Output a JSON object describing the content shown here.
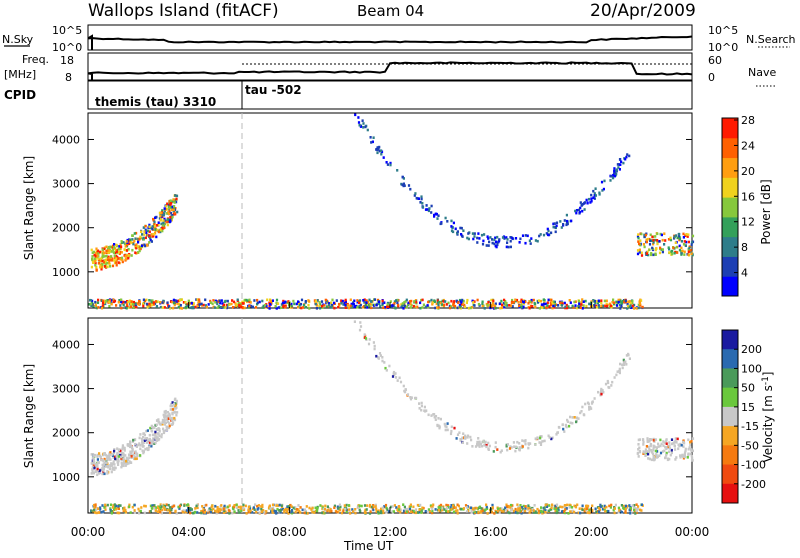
{
  "header": {
    "station": "Wallops Island (fitACF)",
    "beam": "Beam 04",
    "date": "20/Apr/2009"
  },
  "top_panels": {
    "nsky_label": "N.Sky",
    "nsky_top_tick": "10^5",
    "nsky_bottom_tick": "10^0",
    "nsearch_label": "N.Search",
    "nsearch_top_tick": "10^5",
    "nsearch_bottom_tick": "10^0",
    "freq_label_1": "Freq.",
    "freq_label_2": "[MHz]",
    "freq_top_tick": "18",
    "freq_bottom_tick": "8",
    "nave_label": "Nave",
    "nave_top_tick": "60",
    "nave_bottom_tick": "0",
    "cpid_label": "CPID",
    "cpid_segment_1": "themis (tau) 3310",
    "cpid_segment_2": "tau -502"
  },
  "chart_data": [
    {
      "type": "heatmap",
      "title": "Power",
      "xlabel": "Time UT",
      "ylabel": "Slant Range [km]",
      "x_ticks": [
        "00:00",
        "04:00",
        "08:00",
        "12:00",
        "16:00",
        "20:00",
        "00:00"
      ],
      "xlim_hours": [
        0,
        24
      ],
      "ylim": [
        180,
        4600
      ],
      "y_ticks": [
        1000,
        2000,
        3000,
        4000
      ],
      "colorbar": {
        "label": "Power [dB]",
        "ticks": [
          "4",
          "8",
          "12",
          "16",
          "20",
          "24",
          "28"
        ],
        "range": [
          0,
          30
        ],
        "colors": [
          "#0000ff",
          "#1c3fb4",
          "#2e7d8a",
          "#33a05a",
          "#86c83c",
          "#f0d21e",
          "#ff9e10",
          "#ff6000",
          "#ff1a00"
        ]
      },
      "scatter_regions": [
        {
          "name": "near range echoes",
          "t": [
            0,
            22
          ],
          "r": [
            200,
            400
          ],
          "values": [
            4,
            28
          ]
        },
        {
          "name": "morning arc",
          "t": [
            0.1,
            3.5
          ],
          "r": [
            1000,
            2800
          ],
          "values": [
            4,
            28
          ]
        },
        {
          "name": "evening arc",
          "t": [
            10.5,
            21.5
          ],
          "r": [
            1500,
            4300
          ],
          "values": [
            4,
            12
          ]
        },
        {
          "name": "late band",
          "t": [
            21.8,
            24
          ],
          "r": [
            1400,
            1900
          ],
          "values": [
            8,
            20
          ]
        }
      ]
    },
    {
      "type": "heatmap",
      "title": "Velocity",
      "xlabel": "Time UT",
      "ylabel": "Slant Range [km]",
      "x_ticks": [
        "00:00",
        "04:00",
        "08:00",
        "12:00",
        "16:00",
        "20:00",
        "00:00"
      ],
      "xlim_hours": [
        0,
        24
      ],
      "ylim": [
        180,
        4600
      ],
      "y_ticks": [
        1000,
        2000,
        3000,
        4000
      ],
      "colorbar": {
        "label": "Velocity [m s^-1]",
        "ticks": [
          "200",
          "100",
          "50",
          "15",
          "-15",
          "-50",
          "-100",
          "-200"
        ],
        "colors": [
          "#1a1aa0",
          "#2a6ab0",
          "#4a9a5a",
          "#6ac83c",
          "#c8c8c8",
          "#f5a623",
          "#f57a10",
          "#f04a10",
          "#e61010"
        ]
      },
      "scatter_regions": [
        {
          "name": "near range echoes",
          "t": [
            0,
            22
          ],
          "r": [
            200,
            400
          ],
          "values": [
            -50,
            50
          ]
        },
        {
          "name": "morning arc",
          "t": [
            0.1,
            3.5
          ],
          "r": [
            1000,
            2800
          ],
          "values": [
            -15,
            15
          ]
        },
        {
          "name": "evening arc",
          "t": [
            10.5,
            21.5
          ],
          "r": [
            1500,
            4300
          ],
          "values": [
            -15,
            15
          ]
        },
        {
          "name": "late band",
          "t": [
            21.8,
            24
          ],
          "r": [
            1400,
            1900
          ],
          "values": [
            -15,
            15
          ]
        }
      ]
    }
  ]
}
